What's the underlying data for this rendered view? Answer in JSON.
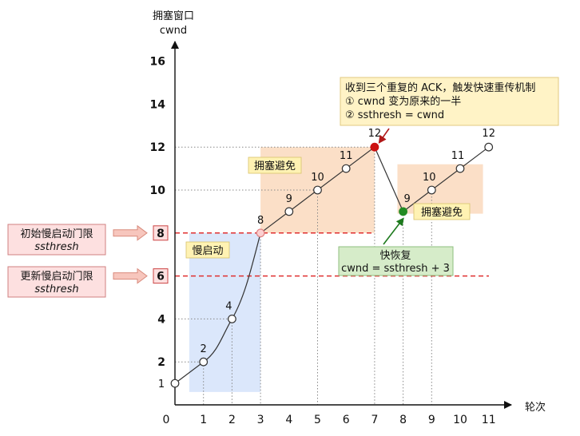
{
  "chart_data": {
    "type": "line",
    "ylabel_line1": "拥塞窗口",
    "ylabel_line2": "cwnd",
    "xlabel": "轮次",
    "x_ticks": [
      "0",
      "1",
      "2",
      "3",
      "4",
      "5",
      "6",
      "7",
      "8",
      "9",
      "10",
      "11"
    ],
    "y_ticks": [
      "2",
      "4",
      "6",
      "8",
      "10",
      "12",
      "14",
      "16"
    ],
    "x": [
      0,
      1,
      2,
      3,
      4,
      5,
      6,
      7,
      8,
      9,
      10,
      11
    ],
    "y": [
      1,
      2,
      4,
      8,
      9,
      10,
      11,
      12,
      9,
      10,
      11,
      12
    ],
    "point_labels": [
      "1",
      "2",
      "4",
      "8",
      "9",
      "10",
      "11",
      "12",
      "9",
      "10",
      "11",
      "12"
    ],
    "threshold_initial": {
      "y": 8,
      "label": "8",
      "note_line1": "初始慢启动门限",
      "note_line2": "ssthresh"
    },
    "threshold_updated": {
      "y": 6,
      "label": "6",
      "note_line1": "更新慢启动门限",
      "note_line2": "ssthresh"
    },
    "zones": {
      "slow_start": "慢启动",
      "congestion_avoidance_1": "拥塞避免",
      "congestion_avoidance_2": "拥塞避免"
    },
    "annotation_loss": {
      "line1": "收到三个重复的 ACK，触发快速重传机制",
      "line2": "① cwnd 变为原来的一半",
      "line3": "② ssthresh = cwnd"
    },
    "annotation_recovery": {
      "line1": "快恢复",
      "line2": "cwnd = ssthresh + 3"
    },
    "colors": {
      "slow_start_zone": "#dbe7fb",
      "avoid_zone": "#fbdfc7",
      "threshold": "#e03030",
      "loss_point": "#cc1111",
      "recovery_point": "#228b22",
      "note_fill": "#fff3c6",
      "recovery_note_fill": "#d6ecc9",
      "side_box_fill": "#fde0e0",
      "arrow_fill": "#f7c6bd"
    }
  }
}
